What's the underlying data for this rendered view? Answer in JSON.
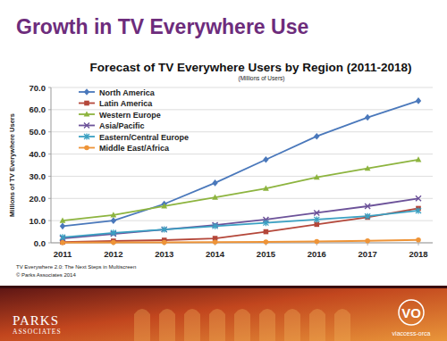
{
  "page": {
    "heading": "Growth in TV Everywhere Use",
    "source": "TV Everywhere 2.0: The Next Steps in Multiscreen",
    "copyright": "© Parks Associates 2014",
    "left_logo": [
      "PARKS",
      "ASSOCIATES"
    ],
    "right_logo_mark": "VO",
    "right_logo": "viaccess-orca"
  },
  "chart_data": {
    "type": "line",
    "title": "Forecast of TV Everywhere Users by Region (2011-2018)",
    "subtitle": "(Millions of Users)",
    "ylabel": "Millions of TV Everywhere Users",
    "categories": [
      "2011",
      "2012",
      "2013",
      "2014",
      "2015",
      "2016",
      "2017",
      "2018"
    ],
    "ylim": [
      0,
      70
    ],
    "yticks": [
      {
        "value": 0,
        "label": "0.0"
      },
      {
        "value": 10,
        "label": "10.0"
      },
      {
        "value": 20,
        "label": "20.0"
      },
      {
        "value": 30,
        "label": "30.0"
      },
      {
        "value": 40,
        "label": "40.0"
      },
      {
        "value": 50,
        "label": "50.0"
      },
      {
        "value": 60,
        "label": "60.0"
      },
      {
        "value": 70,
        "label": "70.0"
      }
    ],
    "grid": true,
    "legend": "upper left",
    "series": [
      {
        "name": "North America",
        "color": "#4a78bb",
        "marker": "diamond",
        "values": [
          7.5,
          10,
          17.5,
          27,
          37.5,
          48,
          56.5,
          64
        ]
      },
      {
        "name": "Latin America",
        "color": "#b4473a",
        "marker": "square",
        "values": [
          0.3,
          0.8,
          1.2,
          2,
          5,
          8.3,
          11.5,
          15.5
        ]
      },
      {
        "name": "Western Europe",
        "color": "#8db43f",
        "marker": "triangle",
        "values": [
          10,
          12.5,
          16.5,
          20.5,
          24.5,
          29.5,
          33.5,
          37.5
        ]
      },
      {
        "name": "Asia/Pacific",
        "color": "#6c5299",
        "marker": "x",
        "values": [
          2,
          4,
          6,
          8,
          10.5,
          13.5,
          16.5,
          20
        ]
      },
      {
        "name": "Eastern/Central Europe",
        "color": "#3aa0c2",
        "marker": "star",
        "values": [
          2.5,
          4.5,
          6,
          7.5,
          9,
          10.5,
          12,
          14.5
        ]
      },
      {
        "name": "Middle East/Africa",
        "color": "#ee9438",
        "marker": "circle",
        "values": [
          0.1,
          0.2,
          0.2,
          0.3,
          0.4,
          0.6,
          0.9,
          1.3
        ]
      }
    ]
  }
}
